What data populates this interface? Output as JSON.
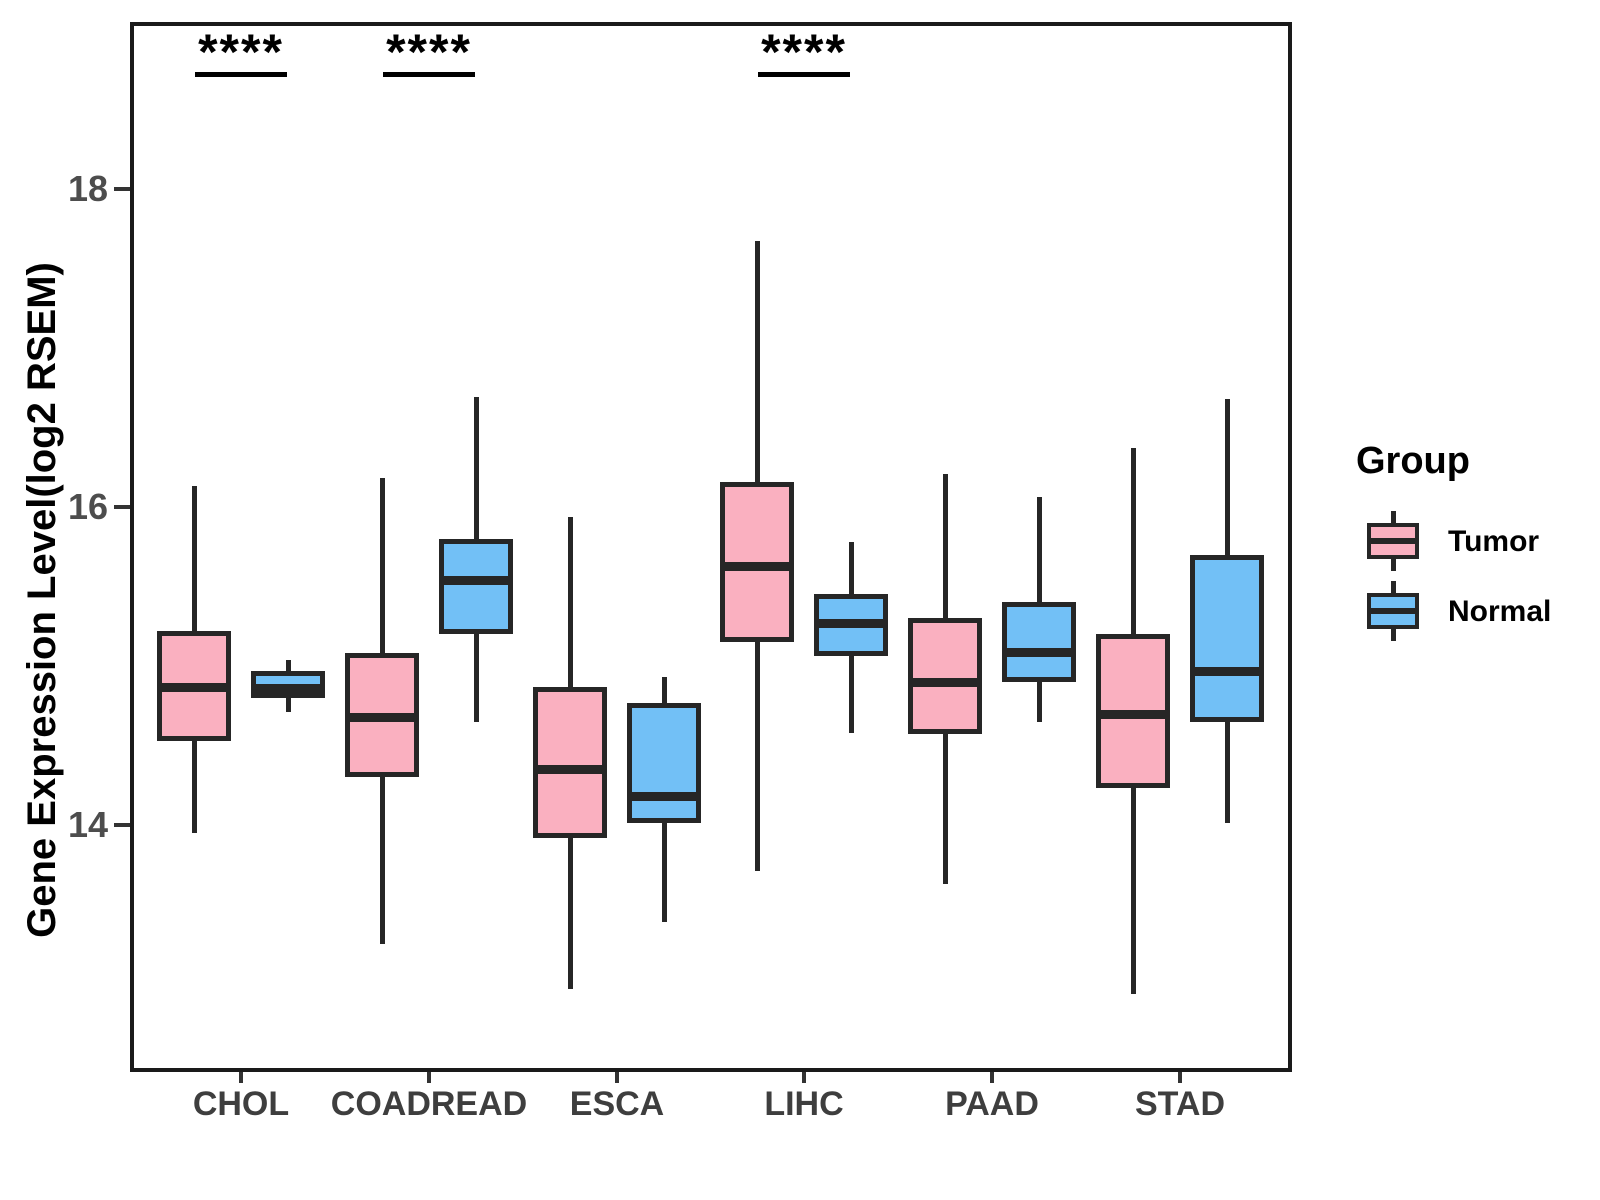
{
  "axes": {
    "y_title": "Gene Expression Level(log2 RSEM)",
    "y_tick_labels": [
      "18",
      "16",
      "14"
    ],
    "x_tick_labels": [
      "CHOL",
      "COADREAD",
      "ESCA",
      "LIHC",
      "PAAD",
      "STAD"
    ]
  },
  "legend": {
    "title": "Group"
  },
  "chart_data": {
    "type": "grouped_boxplot",
    "title": "",
    "xlabel": "",
    "ylabel": "Gene Expression Level(log2 RSEM)",
    "categories": [
      "CHOL",
      "COADREAD",
      "ESCA",
      "LIHC",
      "PAAD",
      "STAD"
    ],
    "y_ticks": [
      18,
      16,
      14
    ],
    "ylim": [
      12.4,
      19.1
    ],
    "grid": false,
    "legend_position": "right",
    "colors": {
      "tumor_fill": "#FAB0C0",
      "normal_fill": "#72C0F6",
      "box_border": "#262626",
      "axis_text": "#4D4D4D",
      "annotation": "#000000"
    },
    "series": [
      {
        "name": "Tumor",
        "fill": "#FAB0C0",
        "boxes": [
          {
            "category": "CHOL",
            "whisker_low": 13.95,
            "q1": 14.53,
            "median": 14.87,
            "q3": 15.22,
            "whisker_high": 16.13
          },
          {
            "category": "COADREAD",
            "whisker_low": 13.25,
            "q1": 14.3,
            "median": 14.68,
            "q3": 15.08,
            "whisker_high": 16.18
          },
          {
            "category": "ESCA",
            "whisker_low": 12.97,
            "q1": 13.92,
            "median": 14.35,
            "q3": 14.87,
            "whisker_high": 15.94
          },
          {
            "category": "LIHC",
            "whisker_low": 13.71,
            "q1": 15.15,
            "median": 15.63,
            "q3": 16.16,
            "whisker_high": 17.67
          },
          {
            "category": "PAAD",
            "whisker_low": 13.63,
            "q1": 14.57,
            "median": 14.9,
            "q3": 15.3,
            "whisker_high": 16.21
          },
          {
            "category": "STAD",
            "whisker_low": 12.94,
            "q1": 14.23,
            "median": 14.7,
            "q3": 15.2,
            "whisker_high": 16.37
          }
        ]
      },
      {
        "name": "Normal",
        "fill": "#72C0F6",
        "boxes": [
          {
            "category": "CHOL",
            "whisker_low": 14.71,
            "q1": 14.8,
            "median": 14.86,
            "q3": 14.97,
            "whisker_high": 15.04
          },
          {
            "category": "COADREAD",
            "whisker_low": 14.65,
            "q1": 15.2,
            "median": 15.54,
            "q3": 15.8,
            "whisker_high": 16.69
          },
          {
            "category": "ESCA",
            "whisker_low": 13.39,
            "q1": 14.01,
            "median": 14.18,
            "q3": 14.77,
            "whisker_high": 14.93
          },
          {
            "category": "LIHC",
            "whisker_low": 14.58,
            "q1": 15.06,
            "median": 15.27,
            "q3": 15.45,
            "whisker_high": 15.78
          },
          {
            "category": "PAAD",
            "whisker_low": 14.65,
            "q1": 14.9,
            "median": 15.09,
            "q3": 15.4,
            "whisker_high": 16.06
          },
          {
            "category": "STAD",
            "whisker_low": 14.01,
            "q1": 14.65,
            "median": 14.97,
            "q3": 15.7,
            "whisker_high": 16.68
          }
        ]
      }
    ],
    "significance": [
      {
        "category": "CHOL",
        "label": "****"
      },
      {
        "category": "COADREAD",
        "label": "****"
      },
      {
        "category": "LIHC",
        "label": "****"
      }
    ]
  }
}
